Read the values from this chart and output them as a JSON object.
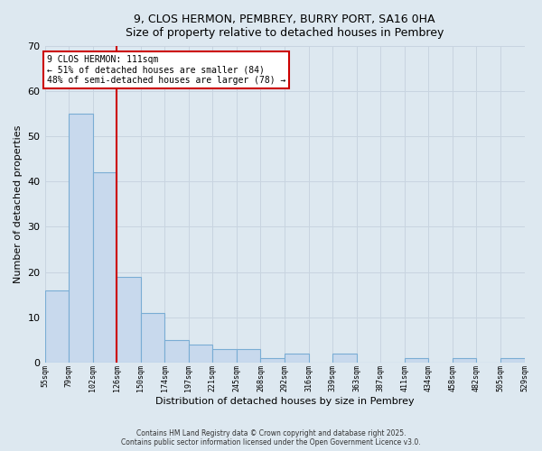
{
  "title_line1": "9, CLOS HERMON, PEMBREY, BURRY PORT, SA16 0HA",
  "title_line2": "Size of property relative to detached houses in Pembrey",
  "xlabel": "Distribution of detached houses by size in Pembrey",
  "ylabel": "Number of detached properties",
  "bar_values": [
    16,
    55,
    42,
    19,
    11,
    5,
    4,
    3,
    3,
    1,
    2,
    0,
    2,
    0,
    0,
    1,
    0,
    1,
    0,
    1
  ],
  "bin_labels": [
    "55sqm",
    "79sqm",
    "102sqm",
    "126sqm",
    "150sqm",
    "174sqm",
    "197sqm",
    "221sqm",
    "245sqm",
    "268sqm",
    "292sqm",
    "316sqm",
    "339sqm",
    "363sqm",
    "387sqm",
    "411sqm",
    "434sqm",
    "458sqm",
    "482sqm",
    "505sqm",
    "529sqm"
  ],
  "bar_color": "#c8d9ed",
  "bar_edge_color": "#7aadd4",
  "grid_color": "#c8d4e0",
  "background_color": "#dde8f0",
  "red_line_index": 2,
  "annotation_line1": "9 CLOS HERMON: 111sqm",
  "annotation_line2": "← 51% of detached houses are smaller (84)",
  "annotation_line3": "48% of semi-detached houses are larger (78) →",
  "annotation_box_color": "#ffffff",
  "annotation_edge_color": "#cc0000",
  "footer_line1": "Contains HM Land Registry data © Crown copyright and database right 2025.",
  "footer_line2": "Contains public sector information licensed under the Open Government Licence v3.0.",
  "ylim": [
    0,
    70
  ],
  "yticks": [
    0,
    10,
    20,
    30,
    40,
    50,
    60,
    70
  ]
}
